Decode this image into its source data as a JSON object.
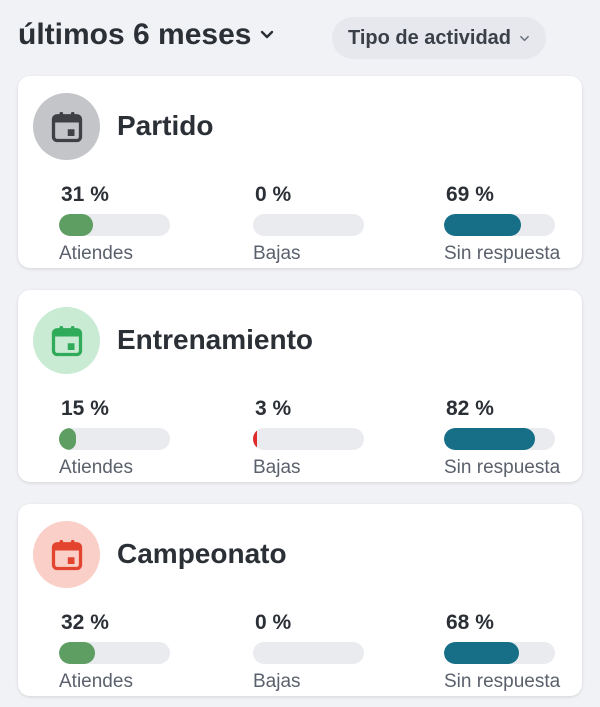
{
  "header": {
    "period_label": "últimos 6 meses",
    "filter_label": "Tipo de actividad"
  },
  "colors": {
    "attend": "#5e9e62",
    "drops": "#e02b2b",
    "no_response": "#166f86",
    "track": "#e9ebef"
  },
  "cards": [
    {
      "title": "Partido",
      "icon": "calendar-icon",
      "icon_color": "#3f4046",
      "icon_bg": "#c4c5c8",
      "stats": [
        {
          "pct_text": "31 %",
          "value": 31,
          "label": "Atiendes"
        },
        {
          "pct_text": "0 %",
          "value": 0,
          "label": "Bajas"
        },
        {
          "pct_text": "69 %",
          "value": 69,
          "label": "Sin respuesta"
        }
      ]
    },
    {
      "title": "Entrenamiento",
      "icon": "calendar-icon",
      "icon_color": "#2fab59",
      "icon_bg": "#c9ebd4",
      "stats": [
        {
          "pct_text": "15 %",
          "value": 15,
          "label": "Atiendes"
        },
        {
          "pct_text": "3 %",
          "value": 3,
          "label": "Bajas"
        },
        {
          "pct_text": "82 %",
          "value": 82,
          "label": "Sin respuesta"
        }
      ]
    },
    {
      "title": "Campeonato",
      "icon": "calendar-icon",
      "icon_color": "#e2442f",
      "icon_bg": "#f9cfc7",
      "stats": [
        {
          "pct_text": "32 %",
          "value": 32,
          "label": "Atiendes"
        },
        {
          "pct_text": "0 %",
          "value": 0,
          "label": "Bajas"
        },
        {
          "pct_text": "68 %",
          "value": 68,
          "label": "Sin respuesta"
        }
      ]
    }
  ]
}
